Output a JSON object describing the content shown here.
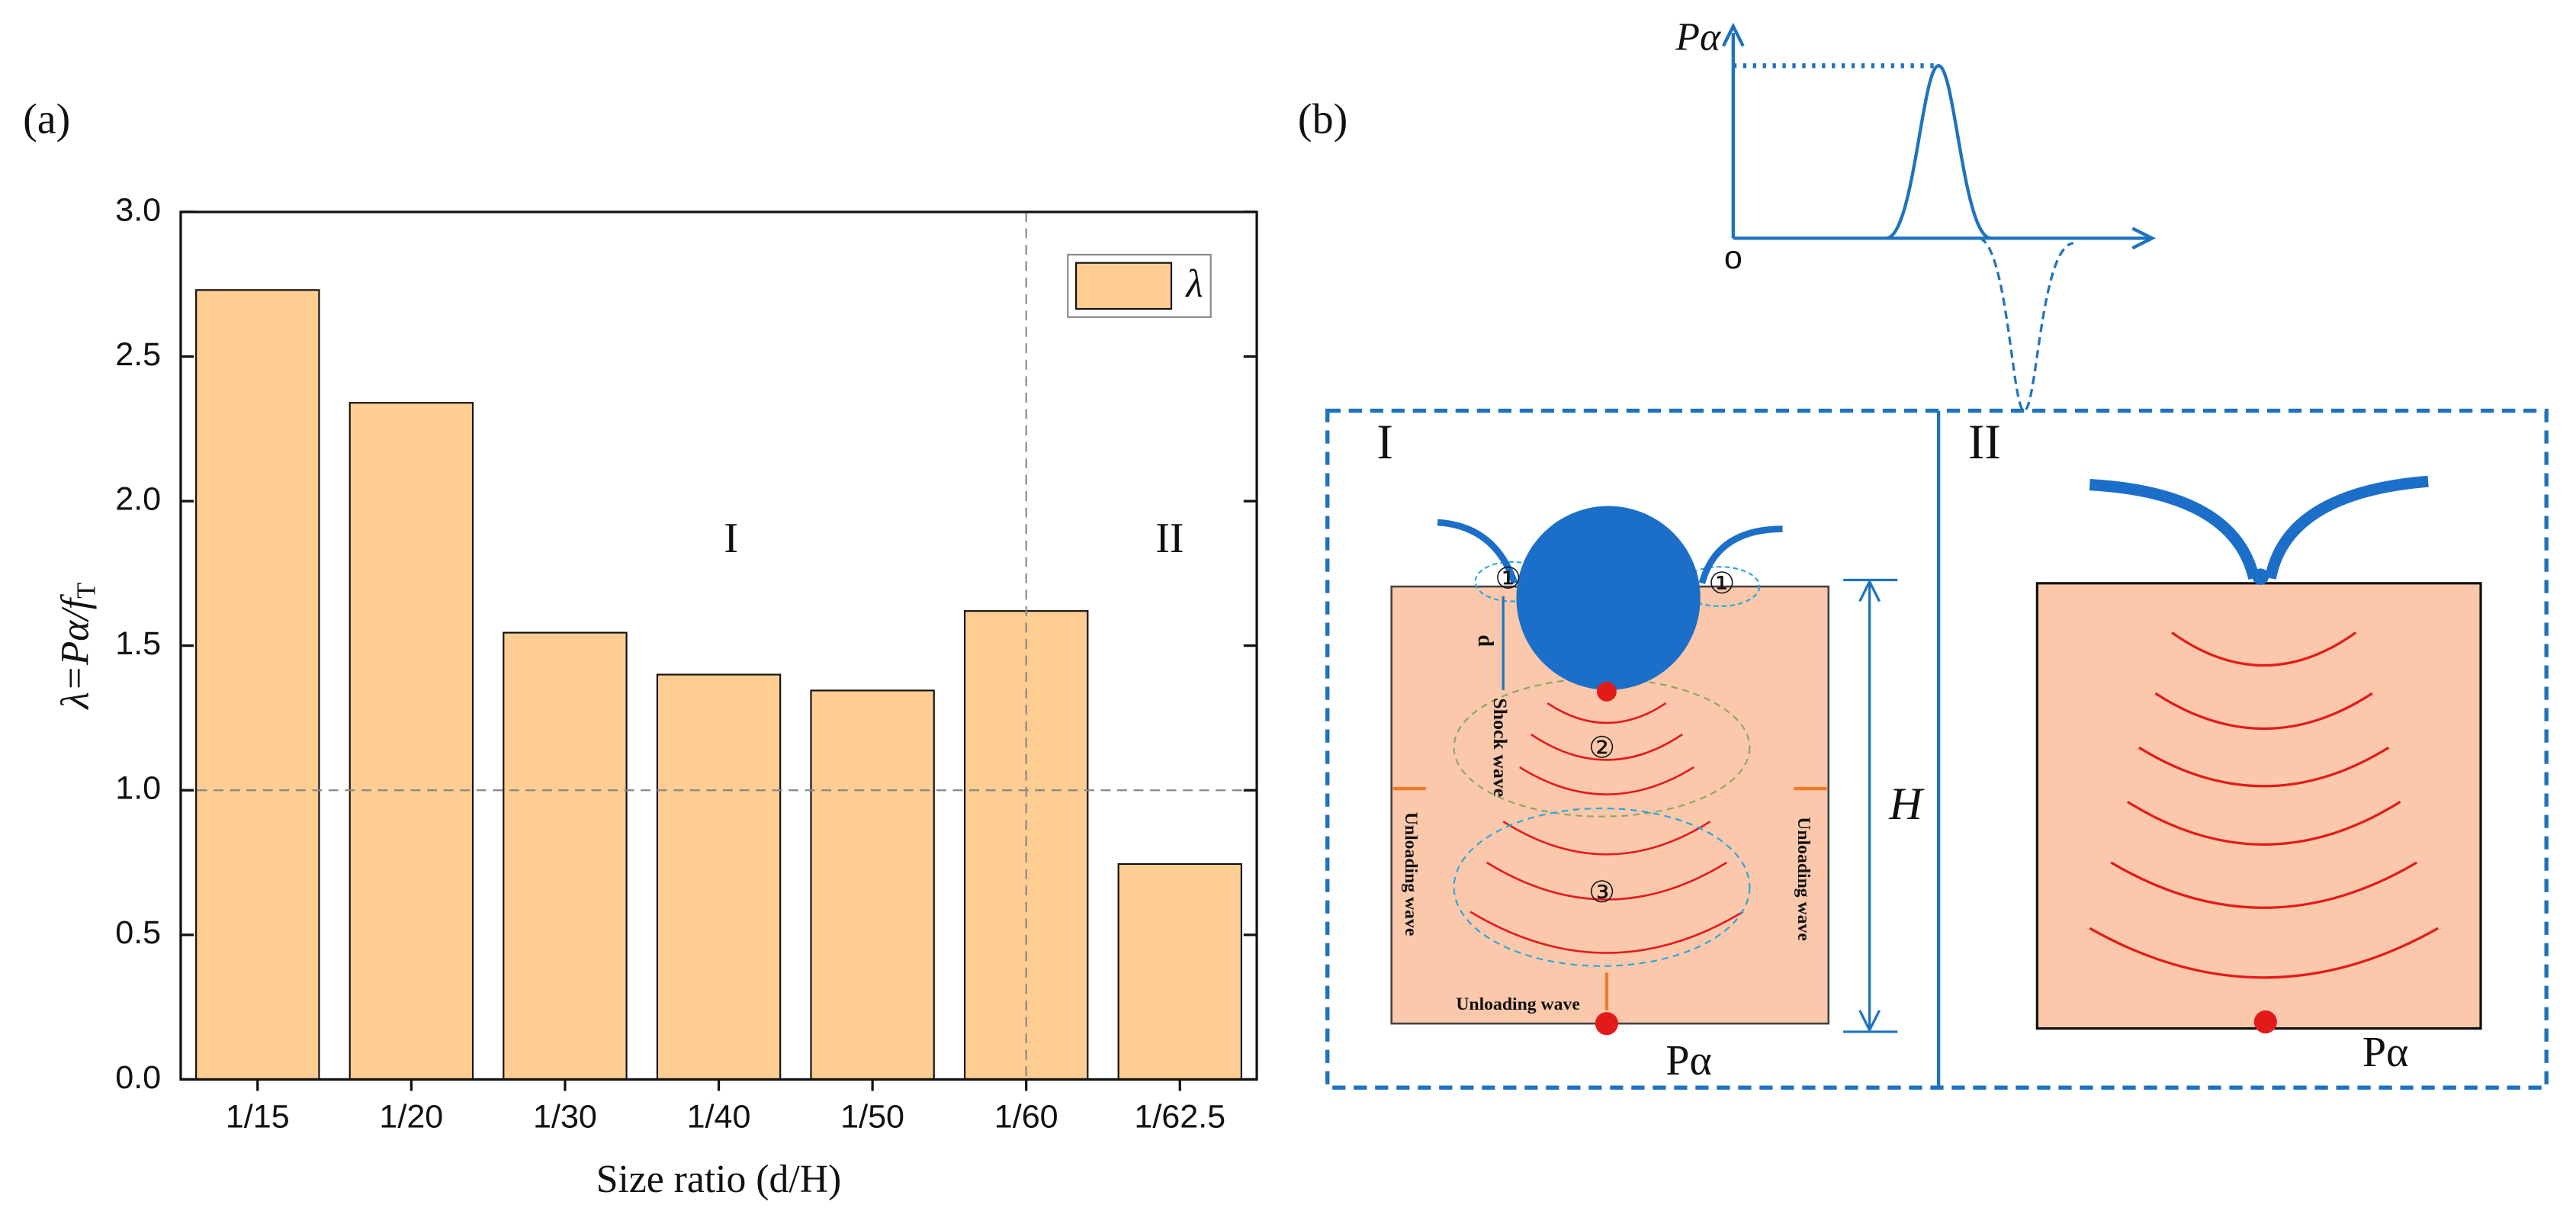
{
  "chart_data": {
    "type": "bar",
    "panel_label": "(a)",
    "xlabel": "Size ratio (d/H)",
    "ylabel": "λ=Pα/f",
    "ylabel_subscript": "T",
    "categories": [
      "1/15",
      "1/20",
      "1/30",
      "1/40",
      "1/50",
      "1/60",
      "1/62.5"
    ],
    "series": [
      {
        "name": "λ",
        "color": "#fdcd91",
        "values": [
          2.73,
          2.34,
          1.545,
          1.4,
          1.345,
          1.62,
          0.745
        ]
      }
    ],
    "ylim": [
      0,
      3
    ],
    "yticks": [
      {
        "value": 0,
        "label": "0.0"
      },
      {
        "value": 0.5,
        "label": "0.5"
      },
      {
        "value": 1,
        "label": "1.0"
      },
      {
        "value": 1.5,
        "label": "1.5"
      },
      {
        "value": 2,
        "label": "2.0"
      },
      {
        "value": 2.5,
        "label": "2.5"
      },
      {
        "value": 3,
        "label": "3.0"
      }
    ],
    "reference_lines": {
      "y": 1,
      "category": "1/60"
    },
    "annotations": [
      "I",
      "II"
    ],
    "legend": "top-right"
  },
  "diagram": {
    "panel_label": "(b)",
    "pulse_axis_label": "Pα",
    "origin_label": "o",
    "zones": [
      {
        "label": "I",
        "load_label": "Pα",
        "height_label": "H",
        "diameter_label": "d",
        "shock_label": "Shock wave",
        "unloading_labels": [
          "Unloading wave",
          "Unloading wave",
          "Unloading wave"
        ],
        "markers": [
          "①",
          "①",
          "②",
          "③"
        ]
      },
      {
        "label": "II",
        "load_label": "Pα"
      }
    ]
  }
}
